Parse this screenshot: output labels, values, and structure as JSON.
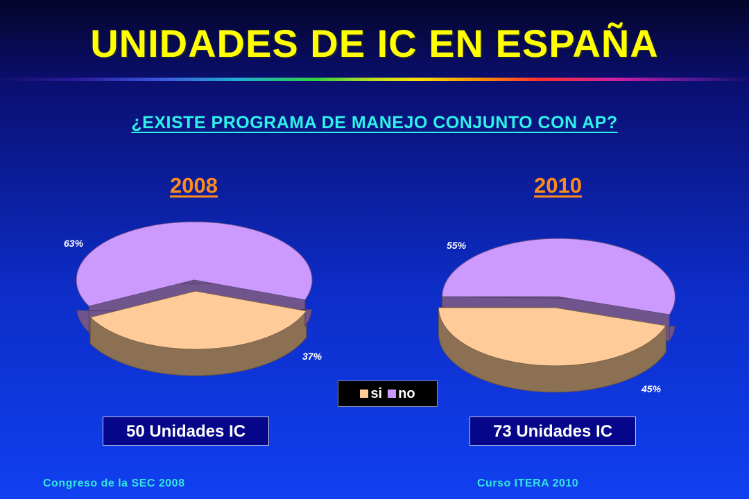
{
  "slide": {
    "title": "UNIDADES DE IC EN ESPAÑA",
    "question": "¿EXISTE PROGRAMA DE MANEJO CONJUNTO CON AP?"
  },
  "chart_data": [
    {
      "type": "pie",
      "title": "2008",
      "categories": [
        "si",
        "no"
      ],
      "values": [
        37,
        63
      ],
      "labels": [
        "37%",
        "63%"
      ],
      "colors": [
        "#ffcc99",
        "#cc99ff"
      ],
      "legend": "bottom",
      "footer_note": "50 Unidades IC"
    },
    {
      "type": "pie",
      "title": "2010",
      "categories": [
        "si",
        "no"
      ],
      "values": [
        45,
        55
      ],
      "labels": [
        "45%",
        "55%"
      ],
      "colors": [
        "#ffcc99",
        "#cc99ff"
      ],
      "legend": "bottom",
      "footer_note": "73 Unidades IC"
    }
  ],
  "legend": {
    "items": [
      {
        "label": "si",
        "color": "#ffcc99"
      },
      {
        "label": "no",
        "color": "#cc99ff"
      }
    ]
  },
  "footer": {
    "left": "Congreso de la SEC 2008",
    "right": "Curso ITERA 2010"
  }
}
